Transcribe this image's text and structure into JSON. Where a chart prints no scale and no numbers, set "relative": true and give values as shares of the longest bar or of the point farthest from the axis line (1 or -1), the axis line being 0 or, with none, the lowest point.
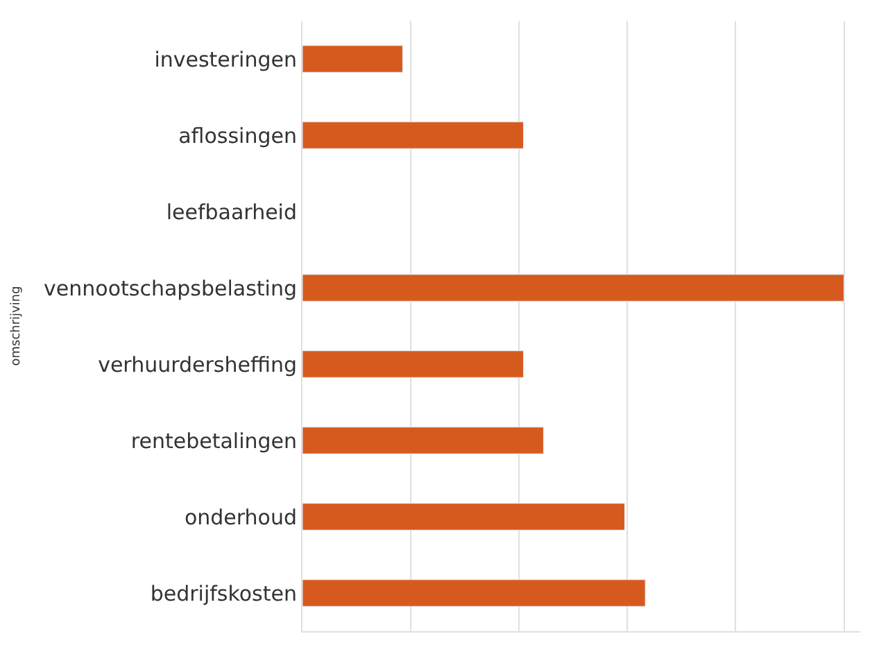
{
  "chart_data": {
    "type": "bar",
    "orientation": "horizontal",
    "relative": true,
    "ylabel": "omschrijving",
    "categories": [
      "investeringen",
      "aflossingen",
      "leefbaarheid",
      "vennootschapsbelasting",
      "verhuurdersheffing",
      "rentebetalingen",
      "onderhoud",
      "bedrijfskosten"
    ],
    "values": [
      0.185,
      0.408,
      null,
      1,
      0.408,
      0.445,
      0.595,
      0.633
    ],
    "color": "#d65a1e",
    "grid": "x"
  }
}
